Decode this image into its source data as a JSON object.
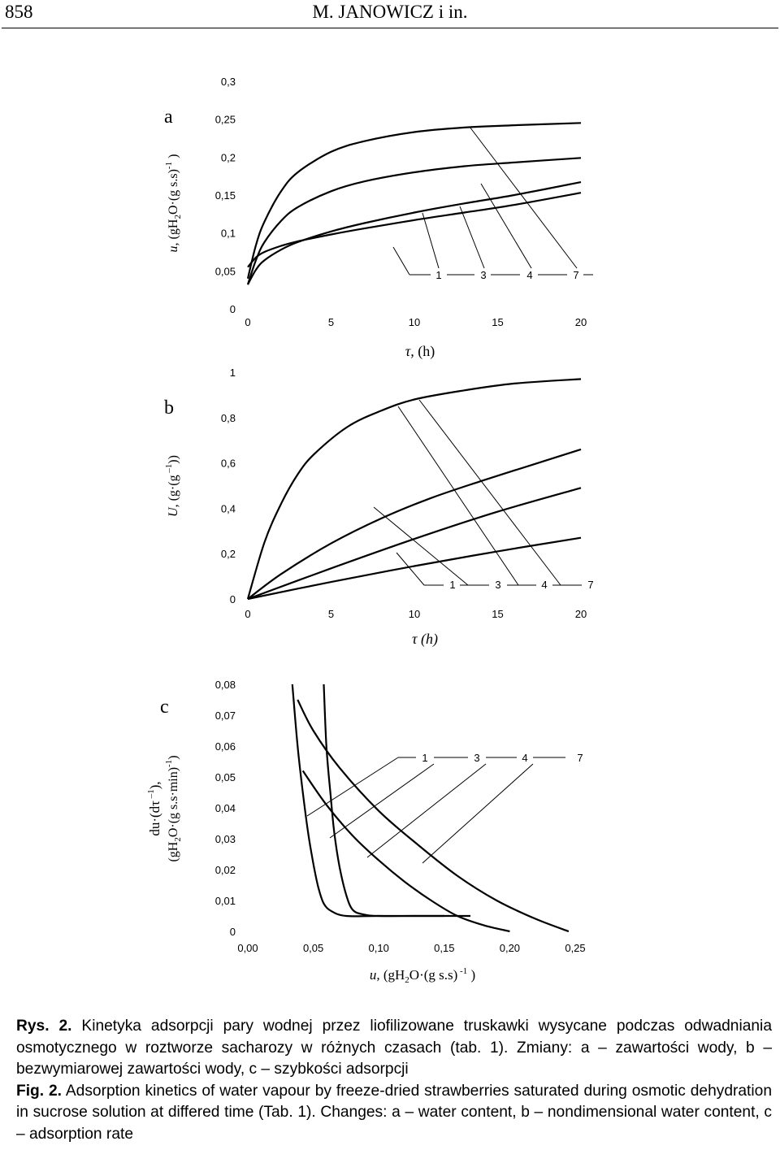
{
  "header": {
    "page_number": "858",
    "running_title": "M. JANOWICZ i in."
  },
  "figure": {
    "panels": [
      {
        "letter": "a",
        "ylabel": "u, (gH2O·(g s.s)-1 )",
        "xlabel": "τ, (h)",
        "callouts": [
          "1",
          "3",
          "4",
          "7"
        ]
      },
      {
        "letter": "b",
        "ylabel": "U, (g·(g –1))",
        "xlabel": "τ (h)",
        "callouts": [
          "1",
          "3",
          "4",
          "7"
        ]
      },
      {
        "letter": "c",
        "ylabel_line1": "du·(dτ –1),",
        "ylabel_line2": "(gH2O·(g s.s·min)-1)",
        "xlabel": "u, (gH2O·(g s.s) -1 )",
        "callouts": [
          "1",
          "3",
          "4",
          "7"
        ]
      }
    ]
  },
  "chart_data": [
    {
      "type": "line",
      "title": "a",
      "xlabel": "τ, (h)",
      "ylabel": "u, (gH2O·(g s.s)-1 )",
      "xlim": [
        0,
        20
      ],
      "ylim": [
        0,
        0.3
      ],
      "xticks": [
        "0",
        "5",
        "10",
        "15",
        "20"
      ],
      "yticks": [
        "0",
        "0,05",
        "0,1",
        "0,15",
        "0,2",
        "0,25",
        "0,3"
      ],
      "series": [
        {
          "name": "1",
          "x": [
            0,
            0.5,
            1,
            2,
            3,
            5,
            7,
            10,
            13,
            16,
            20
          ],
          "y": [
            0.055,
            0.068,
            0.075,
            0.083,
            0.089,
            0.098,
            0.106,
            0.117,
            0.127,
            0.137,
            0.153
          ]
        },
        {
          "name": "3",
          "x": [
            0,
            0.5,
            1,
            2,
            3,
            5,
            7,
            10,
            13,
            16,
            20
          ],
          "y": [
            0.032,
            0.052,
            0.064,
            0.078,
            0.088,
            0.102,
            0.113,
            0.127,
            0.139,
            0.15,
            0.167
          ]
        },
        {
          "name": "4",
          "x": [
            0,
            0.5,
            1,
            2,
            3,
            5,
            7,
            10,
            13,
            16,
            20
          ],
          "y": [
            0.032,
            0.065,
            0.088,
            0.116,
            0.134,
            0.155,
            0.168,
            0.18,
            0.188,
            0.193,
            0.199
          ]
        },
        {
          "name": "7",
          "x": [
            0,
            0.5,
            1,
            2,
            3,
            5,
            7,
            10,
            13,
            16,
            20
          ],
          "y": [
            0.04,
            0.085,
            0.115,
            0.155,
            0.18,
            0.207,
            0.221,
            0.233,
            0.239,
            0.242,
            0.245
          ]
        }
      ]
    },
    {
      "type": "line",
      "title": "b",
      "xlabel": "τ (h)",
      "ylabel": "U, (g·(g –1))",
      "xlim": [
        0,
        20
      ],
      "ylim": [
        0,
        1
      ],
      "xticks": [
        "0",
        "5",
        "10",
        "15",
        "20"
      ],
      "yticks": [
        "0",
        "0,2",
        "0,4",
        "0,6",
        "0,8",
        "1"
      ],
      "series": [
        {
          "name": "1",
          "x": [
            0,
            5,
            10,
            15,
            20
          ],
          "y": [
            0,
            0.075,
            0.145,
            0.21,
            0.27
          ]
        },
        {
          "name": "3",
          "x": [
            0,
            5,
            10,
            15,
            20
          ],
          "y": [
            0,
            0.135,
            0.265,
            0.385,
            0.49
          ]
        },
        {
          "name": "4",
          "x": [
            0,
            2,
            5,
            8,
            11,
            14,
            17,
            20
          ],
          "y": [
            0,
            0.11,
            0.245,
            0.355,
            0.445,
            0.52,
            0.59,
            0.66
          ]
        },
        {
          "name": "7",
          "x": [
            0,
            1,
            2,
            3,
            4,
            6,
            8,
            10,
            13,
            16,
            20
          ],
          "y": [
            0,
            0.25,
            0.42,
            0.55,
            0.64,
            0.76,
            0.83,
            0.88,
            0.92,
            0.95,
            0.97
          ]
        }
      ]
    },
    {
      "type": "line",
      "title": "c",
      "xlabel": "u, (gH2O·(g s.s) -1 )",
      "ylabel": "du·(dτ –1), (gH2O·(g s.s·min)-1)",
      "xlim": [
        0,
        0.25
      ],
      "ylim": [
        0,
        0.08
      ],
      "xticks": [
        "0,00",
        "0,05",
        "0,10",
        "0,15",
        "0,20",
        "0,25"
      ],
      "yticks": [
        "0",
        "0,01",
        "0,02",
        "0,03",
        "0,04",
        "0,05",
        "0,06",
        "0,07",
        "0,08"
      ],
      "series": [
        {
          "name": "1",
          "x": [
            0.034,
            0.038,
            0.042,
            0.046,
            0.05,
            0.054,
            0.058,
            0.064,
            0.075,
            0.1,
            0.15
          ],
          "y": [
            0.08,
            0.06,
            0.045,
            0.032,
            0.022,
            0.014,
            0.009,
            0.0065,
            0.005,
            0.005,
            0.005
          ]
        },
        {
          "name": "3",
          "x": [
            0.058,
            0.06,
            0.063,
            0.066,
            0.07,
            0.075,
            0.08,
            0.088,
            0.1,
            0.13,
            0.17
          ],
          "y": [
            0.08,
            0.06,
            0.045,
            0.032,
            0.021,
            0.012,
            0.007,
            0.0055,
            0.005,
            0.005,
            0.005
          ]
        },
        {
          "name": "4",
          "x": [
            0.042,
            0.06,
            0.08,
            0.1,
            0.12,
            0.14,
            0.16,
            0.18,
            0.2
          ],
          "y": [
            0.052,
            0.041,
            0.031,
            0.023,
            0.016,
            0.01,
            0.005,
            0.002,
            0
          ]
        },
        {
          "name": "7",
          "x": [
            0.038,
            0.05,
            0.07,
            0.1,
            0.13,
            0.16,
            0.19,
            0.22,
            0.245
          ],
          "y": [
            0.075,
            0.065,
            0.053,
            0.039,
            0.028,
            0.018,
            0.01,
            0.004,
            0
          ]
        }
      ]
    }
  ],
  "caption": {
    "pl_label": "Rys. 2.",
    "pl_text": " Kinetyka adsorpcji pary wodnej przez liofilizowane truskawki wysycane podczas odwadniania osmotycznego w roztworze sacharozy w różnych czasach (tab. 1). Zmiany: a – zawartości wody, b – bezwymiarowej zawartości wody, c – szybkości adsorpcji",
    "en_label": "Fig. 2.",
    "en_text": " Adsorption kinetics of water vapour by freeze-dried strawberries saturated during osmotic dehydration in sucrose solution at differed time (Tab. 1). Changes: a – water content, b – nondimensional water content, c – adsorption rate"
  }
}
